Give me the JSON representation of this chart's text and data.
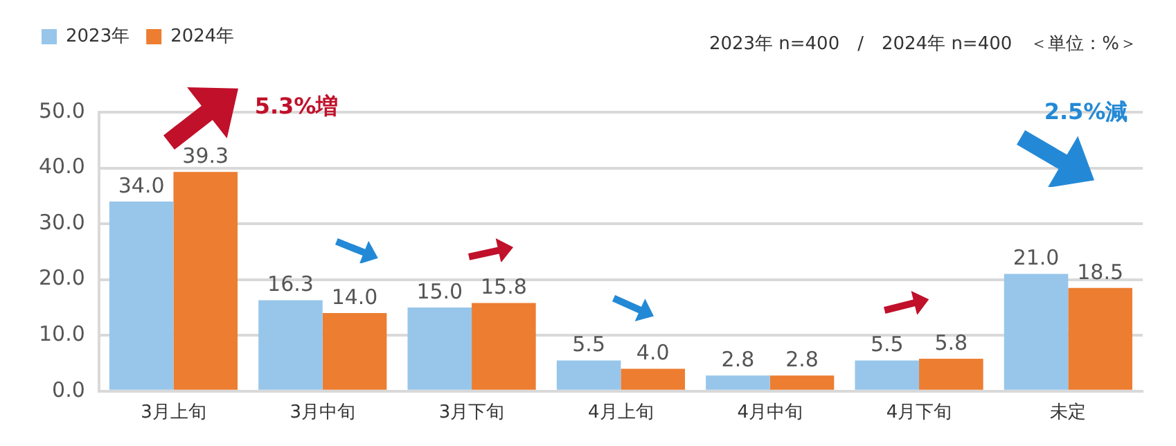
{
  "chart_data": {
    "type": "bar",
    "subtitle": "2023年 n=400　/　2024年 n=400　＜単位：%＞",
    "categories": [
      "3月上旬",
      "3月中旬",
      "3月下旬",
      "4月上旬",
      "4月中旬",
      "4月下旬",
      "未定"
    ],
    "series": [
      {
        "name": "2023年",
        "color": "#97c6ea",
        "values": [
          34.0,
          16.3,
          15.0,
          5.5,
          2.8,
          5.5,
          21.0
        ],
        "value_labels": [
          "34.0",
          "16.3",
          "15.0",
          "5.5",
          "2.8",
          "5.5",
          "21.0"
        ]
      },
      {
        "name": "2024年",
        "color": "#ed7d31",
        "values": [
          39.3,
          14.0,
          15.8,
          4.0,
          2.8,
          5.8,
          18.5
        ],
        "value_labels": [
          "39.3",
          "14.0",
          "15.8",
          "4.0",
          "2.8",
          "5.8",
          "18.5"
        ]
      }
    ],
    "ylim": [
      0,
      50
    ],
    "yticks": [
      {
        "value": 0,
        "label": "0.0"
      },
      {
        "value": 10,
        "label": "10.0"
      },
      {
        "value": 20,
        "label": "20.0"
      },
      {
        "value": 30,
        "label": "30.0"
      },
      {
        "value": 40,
        "label": "40.0"
      },
      {
        "value": 50,
        "label": "50.0"
      }
    ],
    "grid": "y",
    "legend": "top left",
    "annotations": [
      "5.3%増",
      "2.5%減"
    ]
  }
}
